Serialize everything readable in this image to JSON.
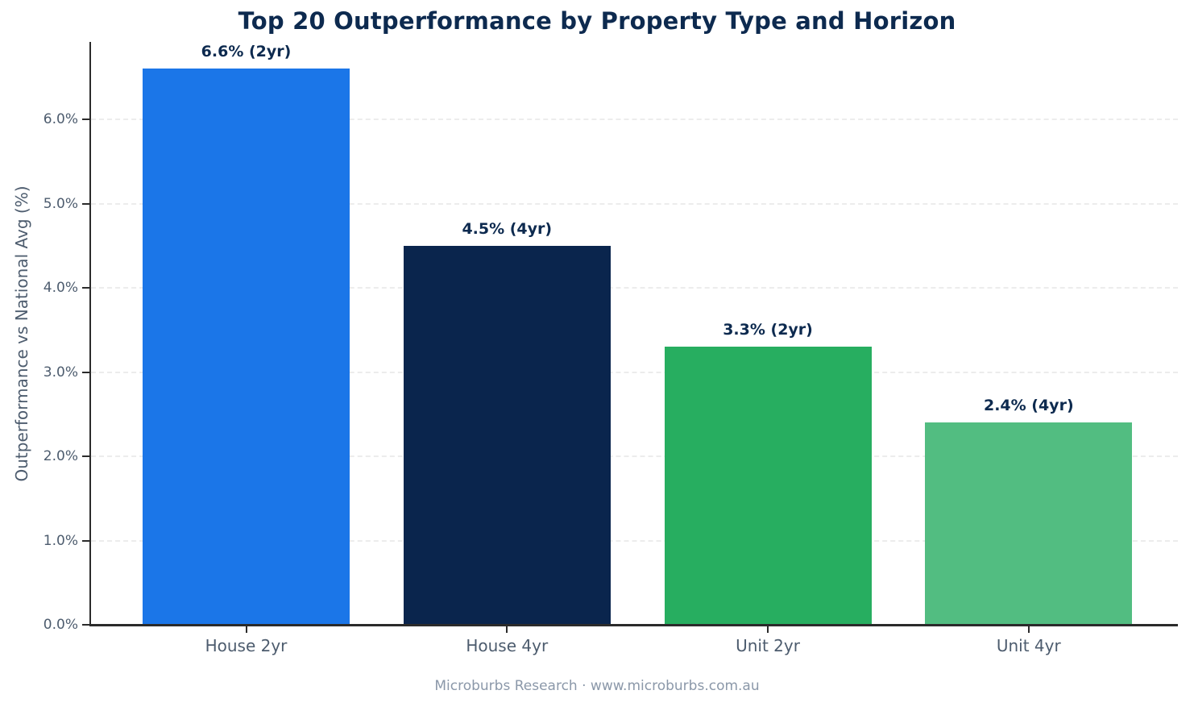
{
  "chart_data": {
    "type": "bar",
    "title": "Top 20 Outperformance by Property Type and Horizon",
    "categories": [
      "House 2yr",
      "House 4yr",
      "Unit 2yr",
      "Unit 4yr"
    ],
    "values": [
      6.6,
      4.5,
      3.3,
      2.4
    ],
    "bar_labels": [
      "6.6% (2yr)",
      "4.5% (4yr)",
      "3.3% (2yr)",
      "2.4% (4yr)"
    ],
    "bar_colors": [
      "#1b76e8",
      "#0a254d",
      "#27ae60",
      "#52bd81"
    ],
    "xlabel": "",
    "ylabel": "Outperformance vs National Avg (%)",
    "ylim": [
      0,
      6.92
    ],
    "yticks": [
      "0.0%",
      "1.0%",
      "2.0%",
      "3.0%",
      "4.0%",
      "5.0%",
      "6.0%"
    ],
    "ytick_values": [
      0,
      1,
      2,
      3,
      4,
      5,
      6
    ],
    "grid": "horizontal-dashed",
    "legend": "none",
    "footnote": "Microburbs Research · www.microburbs.com.au"
  }
}
